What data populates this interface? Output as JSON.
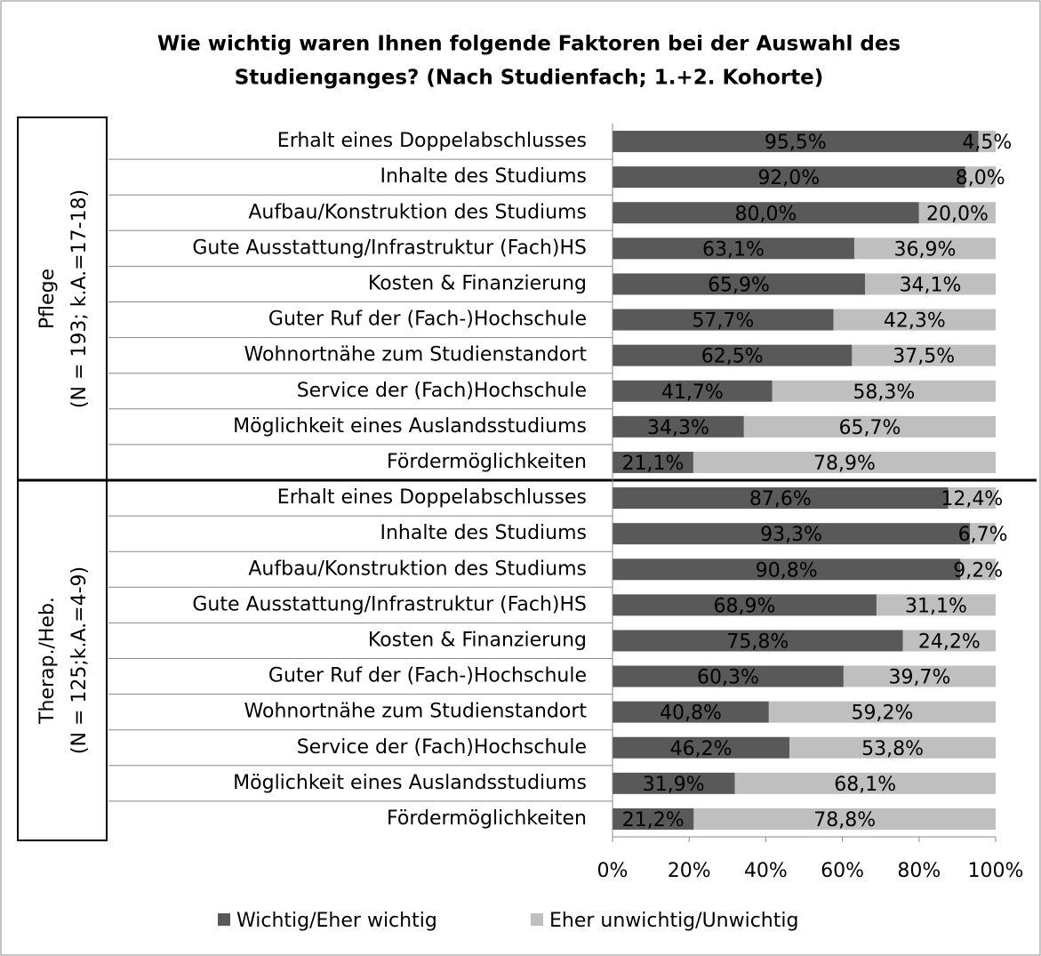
{
  "chart_data": {
    "type": "bar",
    "stacked": true,
    "orientation": "horizontal",
    "title": [
      "Wie wichtig waren Ihnen folgende Faktoren bei der Auswahl des",
      "Studienganges? (Nach Studienfach; 1.+2. Kohorte)"
    ],
    "groups": [
      [
        "Pflege",
        "(N = 193; k.A.=17-18)"
      ],
      [
        "Therap./Heb.",
        "(N = 125;k.A.=4-9)"
      ]
    ],
    "categories": [
      [
        "Erhalt eines Doppelabschlusses",
        "Inhalte des Studiums",
        "Aufbau/Konstruktion des Studiums",
        "Gute Ausstattung/Infrastruktur (Fach)HS",
        "Kosten & Finanzierung",
        "Guter Ruf der (Fach-)Hochschule",
        "Wohnortnähe zum Studienstandort",
        "Service der (Fach)Hochschule",
        "Möglichkeit eines Auslandsstudiums",
        "Fördermöglichkeiten"
      ],
      [
        "Erhalt eines Doppelabschlusses",
        "Inhalte des Studiums",
        "Aufbau/Konstruktion des Studiums",
        "Gute Ausstattung/Infrastruktur (Fach)HS",
        "Kosten & Finanzierung",
        "Guter Ruf der (Fach-)Hochschule",
        "Wohnortnähe zum Studienstandort",
        "Service der (Fach)Hochschule",
        "Möglichkeit eines Auslandsstudiums",
        "Fördermöglichkeiten"
      ]
    ],
    "series": [
      {
        "name": "Wichtig/Eher wichtig",
        "color": "#595959",
        "values": [
          [
            95.5,
            92.0,
            80.0,
            63.1,
            65.9,
            57.7,
            62.5,
            41.7,
            34.3,
            21.1
          ],
          [
            87.6,
            93.3,
            90.8,
            68.9,
            75.8,
            60.3,
            40.8,
            46.2,
            31.9,
            21.2
          ]
        ],
        "value_labels": [
          [
            "95,5%",
            "92,0%",
            "80,0%",
            "63,1%",
            "65,9%",
            "57,7%",
            "62,5%",
            "41,7%",
            "34,3%",
            "21,1%"
          ],
          [
            "87,6%",
            "93,3%",
            "90,8%",
            "68,9%",
            "75,8%",
            "60,3%",
            "40,8%",
            "46,2%",
            "31,9%",
            "21,2%"
          ]
        ]
      },
      {
        "name": "Eher unwichtig/Unwichtig",
        "color": "#bfbfbf",
        "values": [
          [
            4.5,
            8.0,
            20.0,
            36.9,
            34.1,
            42.3,
            37.5,
            58.3,
            65.7,
            78.9
          ],
          [
            12.4,
            6.7,
            9.2,
            31.1,
            24.2,
            39.7,
            59.2,
            53.8,
            68.1,
            78.8
          ]
        ],
        "value_labels": [
          [
            "4,5%",
            "8,0%",
            "20,0%",
            "36,9%",
            "34,1%",
            "42,3%",
            "37,5%",
            "58,3%",
            "65,7%",
            "78,9%"
          ],
          [
            "12,4%",
            "6,7%",
            "9,2%",
            "31,1%",
            "24,2%",
            "39,7%",
            "59,2%",
            "53,8%",
            "68,1%",
            "78,8%"
          ]
        ]
      }
    ],
    "xlim": [
      0,
      100
    ],
    "xticks": [
      {
        "value": 0,
        "label": "0%"
      },
      {
        "value": 20,
        "label": "20%"
      },
      {
        "value": 40,
        "label": "40%"
      },
      {
        "value": 60,
        "label": "60%"
      },
      {
        "value": 80,
        "label": "80%"
      },
      {
        "value": 100,
        "label": "100%"
      }
    ]
  }
}
